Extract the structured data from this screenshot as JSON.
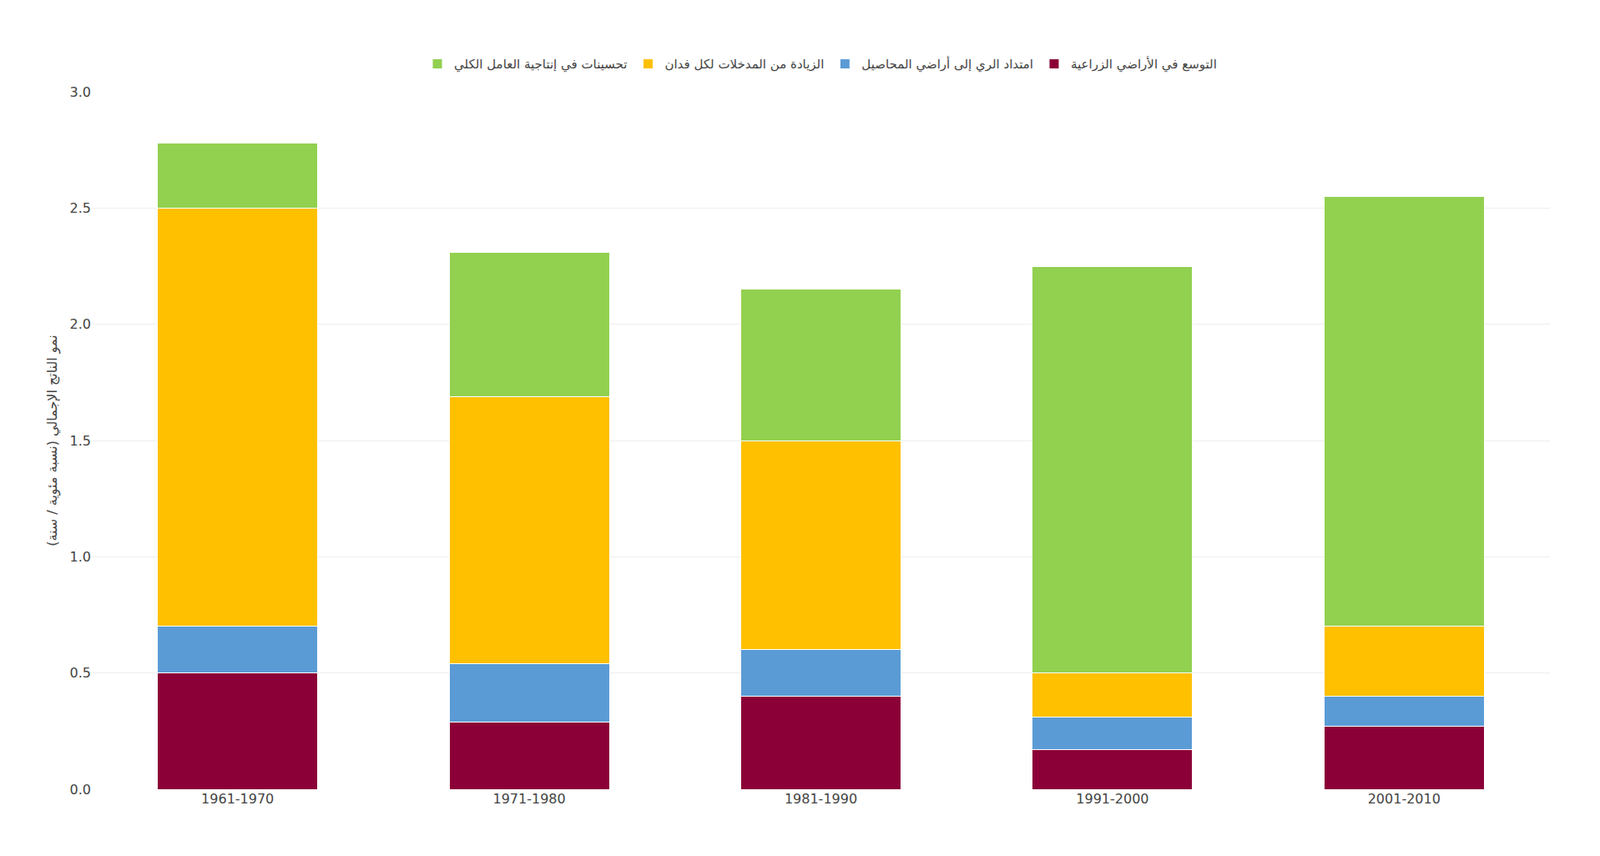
{
  "chart_data": {
    "type": "bar",
    "stacked": true,
    "categories": [
      "1961-1970",
      "1971-1980",
      "1981-1990",
      "1991-2000",
      "2001-2010"
    ],
    "series": [
      {
        "name": "التوسع في الأراضي الزراعية",
        "color": "#8B0037",
        "values": [
          0.5,
          0.29,
          0.4,
          0.17,
          0.27
        ]
      },
      {
        "name": "امتداد الري إلى أراضي المحاصيل",
        "color": "#5B9BD5",
        "values": [
          0.2,
          0.25,
          0.2,
          0.14,
          0.13
        ]
      },
      {
        "name": "الزيادة من المدخلات لكل فدان",
        "color": "#FFC000",
        "values": [
          1.8,
          1.15,
          0.9,
          0.19,
          0.3
        ]
      },
      {
        "name": "تحسينات في إنتاجية العامل الكلي",
        "color": "#92D050",
        "values": [
          0.28,
          0.62,
          0.65,
          1.75,
          1.85
        ]
      }
    ],
    "ylabel": "نمو الناتج الإجمالي (نسبة مئوية / سنة)",
    "ylim": [
      0.0,
      3.0
    ],
    "yticks": [
      {
        "value": 0.0,
        "label": "0.0"
      },
      0.5,
      {
        "value": 1.0,
        "label": "1.0"
      },
      1.5,
      {
        "value": 2.0,
        "label": "2.0"
      },
      2.5,
      {
        "value": 3.0,
        "label": "3.0"
      }
    ],
    "grid": true,
    "legend": "top"
  }
}
